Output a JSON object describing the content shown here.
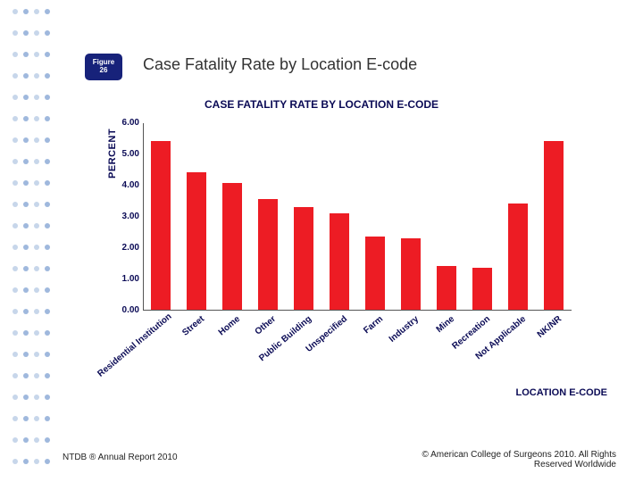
{
  "colors": {
    "dotA": "#c7d6ea",
    "dotB": "#9fb8dd",
    "figtag_bg": "#17227a",
    "figtag_fg": "#ffffff",
    "headline": "#333333",
    "title": "#0a0a55",
    "axis_text": "#0a0a55",
    "bar": "#ed1c24",
    "grid": "#bfbfbf",
    "axis_line": "#555555",
    "footer": "#222222"
  },
  "figtag": {
    "line1": "Figure",
    "line2": "26"
  },
  "headline": "Case Fatality Rate by Location E-code",
  "chart": {
    "type": "bar",
    "title": "CASE FATALITY RATE BY LOCATION E-CODE",
    "ylabel": "PERCENT",
    "xlabel": "LOCATION E-CODE",
    "ylim": [
      0,
      6
    ],
    "ytick_step": 1,
    "ylabel_decimals": 2,
    "bar_rel_width": 0.55,
    "categories": [
      "Residential Institution",
      "Street",
      "Home",
      "Other",
      "Public Building",
      "Unspecified",
      "Farm",
      "Industry",
      "Mine",
      "Recreation",
      "Not Applicable",
      "NK/NR"
    ],
    "values": [
      5.4,
      4.4,
      4.05,
      3.55,
      3.3,
      3.08,
      2.35,
      2.3,
      1.4,
      1.35,
      3.4,
      5.4
    ]
  },
  "footer": {
    "left": "NTDB ® Annual Report 2010",
    "right": "© American College of Surgeons 2010. All Rights Reserved Worldwide"
  }
}
